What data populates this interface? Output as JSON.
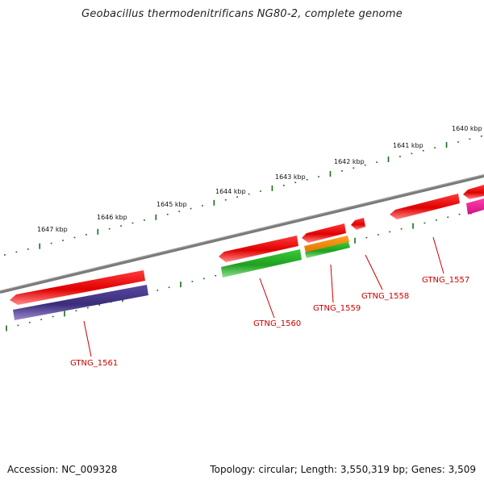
{
  "title": "Geobacillus thermodenitrificans NG80-2, complete genome",
  "footer": {
    "accession": "Accession: NC_009328",
    "topology": "Topology: circular; Length: 3,550,319 bp; Genes: 3,509"
  },
  "kbp_ticks": [
    "1647 kbp",
    "1646 kbp",
    "1645 kbp",
    "1644 kbp",
    "1643 kbp",
    "1642 kbp",
    "1641 kbp",
    "1640 kbp"
  ],
  "genes": [
    {
      "id": "GTNG_1561",
      "label": "GTNG_1561"
    },
    {
      "id": "GTNG_1560",
      "label": "GTNG_1560"
    },
    {
      "id": "GTNG_1559",
      "label": "GTNG_1559"
    },
    {
      "id": "GTNG_1558",
      "label": "GTNG_1558"
    },
    {
      "id": "GTNG_1557",
      "label": "GTNG_1557"
    }
  ],
  "colors": {
    "backbone": "#7a7a7a",
    "tick": "#1a6b1a",
    "gene_red": "#ee0000",
    "gene_purple": "#4b3a8c",
    "gene_green": "#2fb82f",
    "gene_orange": "#f08a00",
    "gene_pink": "#ee1c9c",
    "label": "#cc0000"
  }
}
